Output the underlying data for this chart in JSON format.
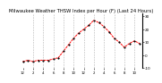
{
  "title": "Milwaukee Weather THSW Index per Hour (F) (Last 24 Hours)",
  "x_values": [
    0,
    1,
    2,
    3,
    4,
    5,
    6,
    7,
    8,
    9,
    10,
    11,
    12,
    13,
    14,
    15,
    16,
    17,
    18,
    19,
    20,
    21,
    22,
    23
  ],
  "y_values": [
    -5,
    -4,
    -5,
    -4,
    -4,
    -4,
    -3,
    -2,
    3,
    8,
    13,
    17,
    20,
    23,
    27,
    25,
    22,
    18,
    13,
    10,
    6,
    9,
    11,
    9
  ],
  "ylim": [
    -8,
    32
  ],
  "xlim": [
    -0.5,
    23.5
  ],
  "line_color": "red",
  "marker_color": "black",
  "bg_color": "#ffffff",
  "grid_color": "#888888",
  "title_fontsize": 3.8,
  "ytick_labels": [
    "30",
    "20",
    "10",
    "0",
    "-10"
  ],
  "ytick_vals": [
    30,
    20,
    10,
    0,
    -10
  ],
  "x_tick_positions": [
    0,
    2,
    4,
    6,
    8,
    10,
    12,
    14,
    16,
    18,
    20,
    22
  ],
  "x_tick_labels": [
    "12",
    "2",
    "4",
    "6",
    "8",
    "10",
    "12",
    "2",
    "4",
    "6",
    "8",
    "10"
  ],
  "vgrid_positions": [
    2,
    4,
    6,
    8,
    10,
    12,
    14,
    16,
    18,
    20,
    22
  ]
}
